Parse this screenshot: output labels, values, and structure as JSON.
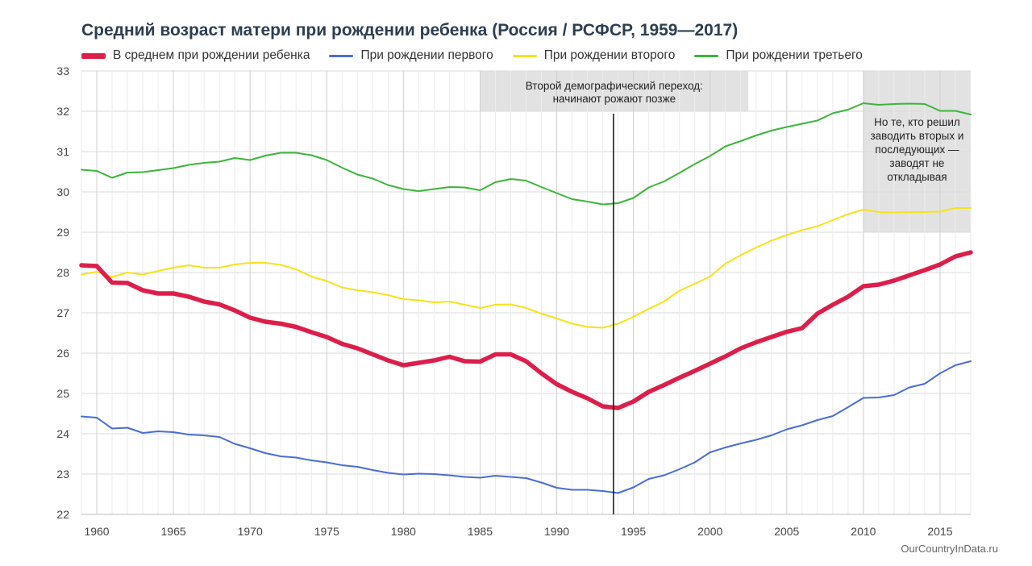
{
  "title": "Средний возраст матери при рождении ребенка (Россия / РСФСР, 1959—2017)",
  "source": "OurCountryInData.ru",
  "colors": {
    "average": "#dc1e4b",
    "first": "#4a6cd4",
    "second": "#f5e31a",
    "third": "#3cb43c",
    "grid": "#d9d9d9",
    "band": "#e2e2e2"
  },
  "chart_data": {
    "type": "line",
    "title": "Средний возраст матери при рождении ребенка (Россия / РСФСР, 1959—2017)",
    "xlabel": "",
    "ylabel": "",
    "xlim": [
      1959,
      2017
    ],
    "ylim": [
      22,
      33
    ],
    "x_ticks": [
      1960,
      1965,
      1970,
      1975,
      1980,
      1985,
      1990,
      1995,
      2000,
      2005,
      2010,
      2015
    ],
    "y_ticks": [
      22,
      23,
      24,
      25,
      26,
      27,
      28,
      29,
      30,
      31,
      32,
      33
    ],
    "grid": true,
    "legend_position": "top",
    "x": [
      1959,
      1960,
      1961,
      1962,
      1963,
      1964,
      1965,
      1966,
      1967,
      1968,
      1969,
      1970,
      1971,
      1972,
      1973,
      1974,
      1975,
      1976,
      1977,
      1978,
      1979,
      1980,
      1981,
      1982,
      1983,
      1984,
      1985,
      1986,
      1987,
      1988,
      1989,
      1990,
      1991,
      1992,
      1993,
      1994,
      1995,
      1996,
      1997,
      1998,
      1999,
      2000,
      2001,
      2002,
      2003,
      2004,
      2005,
      2006,
      2007,
      2008,
      2009,
      2010,
      2011,
      2012,
      2013,
      2014,
      2015,
      2016,
      2017
    ],
    "series": [
      {
        "key": "average",
        "name": "В среднем при рождении ребенка",
        "values": [
          28.18,
          28.16,
          27.75,
          27.74,
          27.56,
          27.48,
          27.48,
          27.4,
          27.28,
          27.21,
          27.06,
          26.88,
          26.78,
          26.73,
          26.65,
          26.52,
          26.4,
          26.23,
          26.12,
          25.97,
          25.82,
          25.7,
          25.76,
          25.82,
          25.91,
          25.8,
          25.79,
          25.97,
          25.97,
          25.8,
          25.5,
          25.23,
          25.04,
          24.88,
          24.68,
          24.64,
          24.8,
          25.04,
          25.21,
          25.39,
          25.56,
          25.74,
          25.92,
          26.12,
          26.27,
          26.4,
          26.53,
          26.62,
          26.98,
          27.2,
          27.4,
          27.66,
          27.7,
          27.8,
          27.93,
          28.06,
          28.2,
          28.4,
          28.5
        ]
      },
      {
        "key": "first",
        "name": "При рождении первого",
        "values": [
          24.43,
          24.4,
          24.13,
          24.15,
          24.02,
          24.06,
          24.04,
          23.98,
          23.96,
          23.92,
          23.75,
          23.64,
          23.52,
          23.44,
          23.41,
          23.34,
          23.29,
          23.22,
          23.18,
          23.1,
          23.03,
          22.99,
          23.01,
          23.0,
          22.97,
          22.93,
          22.91,
          22.96,
          22.93,
          22.9,
          22.79,
          22.66,
          22.61,
          22.61,
          22.58,
          22.53,
          22.67,
          22.88,
          22.97,
          23.12,
          23.29,
          23.54,
          23.66,
          23.76,
          23.85,
          23.96,
          24.11,
          24.21,
          24.34,
          24.44,
          24.66,
          24.89,
          24.9,
          24.96,
          25.15,
          25.24,
          25.5,
          25.7,
          25.8
        ]
      },
      {
        "key": "second",
        "name": "При рождении второго",
        "values": [
          27.95,
          28.02,
          27.89,
          28.0,
          27.95,
          28.04,
          28.12,
          28.18,
          28.12,
          28.12,
          28.2,
          28.24,
          28.24,
          28.19,
          28.08,
          27.9,
          27.79,
          27.63,
          27.56,
          27.51,
          27.44,
          27.34,
          27.31,
          27.26,
          27.28,
          27.2,
          27.12,
          27.2,
          27.21,
          27.12,
          26.98,
          26.86,
          26.73,
          26.65,
          26.63,
          26.73,
          26.9,
          27.1,
          27.28,
          27.55,
          27.72,
          27.9,
          28.22,
          28.43,
          28.62,
          28.79,
          28.93,
          29.05,
          29.15,
          29.3,
          29.45,
          29.56,
          29.5,
          29.49,
          29.5,
          29.5,
          29.51,
          29.6,
          29.6
        ]
      },
      {
        "key": "third",
        "name": "При рождении третьего",
        "values": [
          30.55,
          30.52,
          30.35,
          30.48,
          30.49,
          30.54,
          30.59,
          30.67,
          30.72,
          30.75,
          30.84,
          30.79,
          30.9,
          30.97,
          30.97,
          30.91,
          30.79,
          30.6,
          30.43,
          30.33,
          30.17,
          30.07,
          30.02,
          30.07,
          30.12,
          30.11,
          30.04,
          30.24,
          30.32,
          30.28,
          30.12,
          29.97,
          29.82,
          29.76,
          29.69,
          29.72,
          29.85,
          30.11,
          30.26,
          30.47,
          30.69,
          30.89,
          31.13,
          31.26,
          31.4,
          31.52,
          31.61,
          31.69,
          31.77,
          31.95,
          32.04,
          32.2,
          32.16,
          32.18,
          32.19,
          32.18,
          32.01,
          32.01,
          31.92
        ]
      }
    ],
    "annotations": [
      {
        "text": "Второй демографический переход: начинают рожают позже",
        "x_range": [
          1985,
          2002.5
        ],
        "y_range": [
          32,
          33
        ]
      },
      {
        "text": "Но те, кто решил заводить вторых и последующих — заводят не откладывая",
        "x_range": [
          2010,
          2017
        ],
        "y_range": [
          29,
          33
        ]
      }
    ],
    "reference_line": {
      "x": 1993.7
    }
  }
}
